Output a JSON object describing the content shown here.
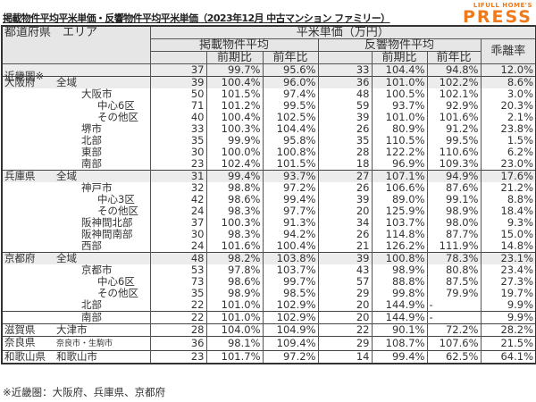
{
  "title": "掲載物件平均平米単価・反響物件平均平米単価（2023年12月 中古マンション ファミリー）",
  "logo": {
    "line1": "LIFULL HOME'S",
    "line2": "PRESS",
    "color": "#f07a1a"
  },
  "header": {
    "region": "都道府県　エリア",
    "unit": "平米単価（万円）",
    "listed": "掲載物件平均",
    "inquiry": "反響物件平均",
    "qoq": "前期比",
    "yoy": "前年比",
    "gap": "乖離率"
  },
  "rows": [
    {
      "pref": "近畿圏※",
      "area": "",
      "level": 0,
      "group": true,
      "v": [
        "37",
        "99.7%",
        "95.6%",
        "33",
        "104.4%",
        "94.8%",
        "12.0%"
      ]
    },
    {
      "pref": "大阪府",
      "area": "全域",
      "level": 1,
      "group": true,
      "v": [
        "39",
        "100.4%",
        "96.0%",
        "36",
        "101.0%",
        "102.2%",
        "8.6%"
      ]
    },
    {
      "pref": "",
      "area": "大阪市",
      "level": 2,
      "v": [
        "50",
        "101.5%",
        "97.4%",
        "48",
        "100.5%",
        "102.1%",
        "3.0%"
      ]
    },
    {
      "pref": "",
      "area": "中心6区",
      "level": 3,
      "v": [
        "71",
        "101.2%",
        "99.5%",
        "59",
        "93.7%",
        "92.9%",
        "20.3%"
      ]
    },
    {
      "pref": "",
      "area": "その他区",
      "level": 3,
      "v": [
        "40",
        "100.4%",
        "102.5%",
        "39",
        "101.0%",
        "101.6%",
        "2.1%"
      ]
    },
    {
      "pref": "",
      "area": "堺市",
      "level": 2,
      "v": [
        "33",
        "100.3%",
        "104.4%",
        "26",
        "80.9%",
        "91.2%",
        "23.8%"
      ]
    },
    {
      "pref": "",
      "area": "北部",
      "level": 2,
      "v": [
        "35",
        "99.9%",
        "95.8%",
        "35",
        "110.5%",
        "99.5%",
        "1.5%"
      ]
    },
    {
      "pref": "",
      "area": "東部",
      "level": 2,
      "v": [
        "30",
        "100.0%",
        "100.8%",
        "28",
        "122.2%",
        "110.6%",
        "6.2%"
      ]
    },
    {
      "pref": "",
      "area": "南部",
      "level": 2,
      "v": [
        "23",
        "102.4%",
        "101.5%",
        "18",
        "96.9%",
        "109.3%",
        "23.0%"
      ]
    },
    {
      "pref": "兵庫県",
      "area": "全域",
      "level": 1,
      "group": true,
      "v": [
        "31",
        "99.4%",
        "93.7%",
        "27",
        "107.1%",
        "94.9%",
        "17.6%"
      ]
    },
    {
      "pref": "",
      "area": "神戸市",
      "level": 2,
      "v": [
        "32",
        "98.8%",
        "97.2%",
        "26",
        "106.6%",
        "87.6%",
        "21.2%"
      ]
    },
    {
      "pref": "",
      "area": "中心3区",
      "level": 3,
      "v": [
        "42",
        "98.6%",
        "99.4%",
        "39",
        "89.0%",
        "99.1%",
        "8.8%"
      ]
    },
    {
      "pref": "",
      "area": "その他区",
      "level": 3,
      "v": [
        "24",
        "98.3%",
        "97.7%",
        "20",
        "125.9%",
        "98.9%",
        "18.4%"
      ]
    },
    {
      "pref": "",
      "area": "阪神間北部",
      "level": 2,
      "v": [
        "37",
        "100.3%",
        "91.3%",
        "34",
        "103.7%",
        "98.0%",
        "9.3%"
      ]
    },
    {
      "pref": "",
      "area": "阪神間南部",
      "level": 2,
      "v": [
        "30",
        "98.3%",
        "94.2%",
        "26",
        "114.8%",
        "87.7%",
        "15.0%"
      ]
    },
    {
      "pref": "",
      "area": "西部",
      "level": 2,
      "v": [
        "24",
        "101.6%",
        "100.4%",
        "21",
        "126.2%",
        "111.9%",
        "14.8%"
      ]
    },
    {
      "pref": "京都府",
      "area": "全域",
      "level": 1,
      "group": true,
      "v": [
        "48",
        "98.2%",
        "103.8%",
        "39",
        "100.8%",
        "78.3%",
        "23.1%"
      ]
    },
    {
      "pref": "",
      "area": "京都市",
      "level": 2,
      "v": [
        "53",
        "97.8%",
        "103.7%",
        "43",
        "98.9%",
        "80.8%",
        "23.4%"
      ]
    },
    {
      "pref": "",
      "area": "中心6区",
      "level": 3,
      "v": [
        "73",
        "98.6%",
        "99.7%",
        "57",
        "88.8%",
        "87.5%",
        "27.3%"
      ]
    },
    {
      "pref": "",
      "area": "その他区",
      "level": 3,
      "v": [
        "35",
        "98.9%",
        "98.5%",
        "29",
        "99.8%",
        "79.9%",
        "19.7%"
      ]
    },
    {
      "pref": "",
      "area": "北部",
      "level": 2,
      "v": [
        "22",
        "101.0%",
        "102.9%",
        "20",
        "144.9%",
        "-",
        "9.9%"
      ]
    },
    {
      "pref": "",
      "area": "南部",
      "level": 2,
      "sep": true,
      "v": [
        "22",
        "101.0%",
        "102.9%",
        "20",
        "144.9%",
        "-",
        "9.9%"
      ]
    },
    {
      "pref": "滋賀県",
      "area": "大津市",
      "level": 1,
      "sep": true,
      "v": [
        "28",
        "104.0%",
        "104.9%",
        "22",
        "90.1%",
        "72.2%",
        "28.2%"
      ]
    },
    {
      "pref": "奈良県",
      "area": "奈良市・生駒市",
      "level": 1,
      "sep": true,
      "small": true,
      "v": [
        "36",
        "98.1%",
        "109.4%",
        "29",
        "108.7%",
        "107.6%",
        "21.5%"
      ]
    },
    {
      "pref": "和歌山県",
      "area": "和歌山市",
      "level": 1,
      "sep": true,
      "v": [
        "23",
        "101.7%",
        "97.2%",
        "14",
        "99.4%",
        "62.5%",
        "64.1%"
      ]
    }
  ],
  "footnote": "※近畿圏：大阪府、兵庫県、京都府"
}
